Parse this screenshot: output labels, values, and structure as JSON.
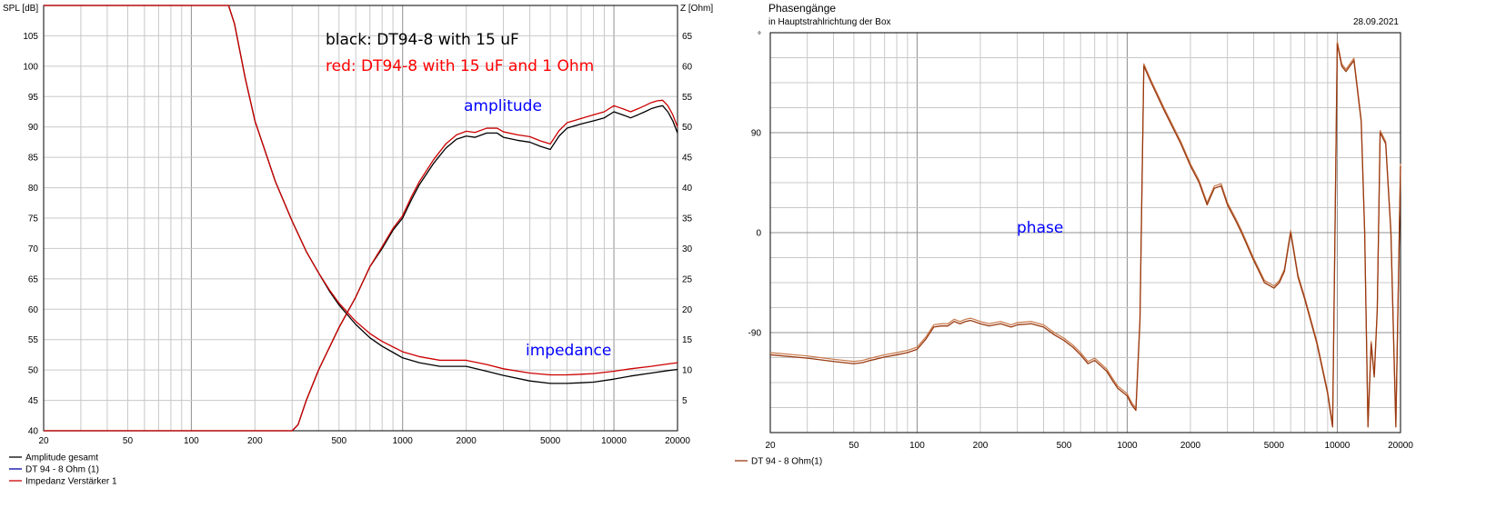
{
  "colors": {
    "black_curve": "#000000",
    "red_curve": "#cc0000",
    "phase_curve": "#9a3a10",
    "phase_curve2": "#c8784a",
    "annotation_black": "#000000",
    "annotation_red": "#ff0000",
    "annotation_blue": "#0000ff",
    "grid_minor": "#c8c8c8",
    "grid_major": "#909090"
  },
  "left": {
    "y_left_unit": "SPL [dB]",
    "y_right_unit": "Z [Ohm]",
    "annotations": {
      "black": "black: DT94-8 with 15 uF",
      "red": "red: DT94-8 with 15 uF and 1 Ohm",
      "amplitude": "amplitude",
      "impedance": "impedance"
    },
    "legend": [
      "Amplitude gesamt",
      "DT 94 - 8 Ohm (1)",
      "Impedanz Verstärker 1"
    ]
  },
  "right": {
    "title": "Phasengänge",
    "subtitle": "in Hauptstrahlrichtung der Box",
    "date": "28.09.2021",
    "y_unit": "°",
    "annotation": "phase",
    "legend": [
      "DT 94 - 8 Ohm(1)"
    ]
  },
  "chart_data": [
    {
      "type": "line",
      "x_scale": "log",
      "xlim": [
        20,
        20000
      ],
      "x_tick_labels": [
        "20",
        "50",
        "100",
        "200",
        "500",
        "1000",
        "2000",
        "5000",
        "10000",
        "20000"
      ],
      "ylim": [
        40,
        110
      ],
      "y_tick_labels": [
        "40",
        "45",
        "50",
        "55",
        "60",
        "65",
        "70",
        "75",
        "80",
        "85",
        "90",
        "95",
        "100",
        "105"
      ],
      "y2lim": [
        0,
        70
      ],
      "y2_tick_labels": [
        "5",
        "10",
        "15",
        "20",
        "25",
        "30",
        "35",
        "40",
        "45",
        "50",
        "55",
        "60",
        "65"
      ],
      "ylabel": "SPL [dB]",
      "y2label": "Z [Ohm]",
      "grid": true,
      "legend_position": "bottom-left",
      "series": [
        {
          "name": "Amplitude gesamt",
          "axis": "left",
          "x": [
            20,
            300,
            320,
            350,
            400,
            500,
            600,
            700,
            800,
            900,
            1000,
            1100,
            1200,
            1400,
            1600,
            1800,
            2000,
            2200,
            2500,
            2800,
            3000,
            3500,
            4000,
            4500,
            5000,
            5500,
            6000,
            7000,
            8000,
            9000,
            10000,
            11000,
            12000,
            13000,
            14000,
            15000,
            16000,
            17000,
            18000,
            19000,
            20000
          ],
          "y": [
            40,
            40,
            41,
            45,
            50,
            57,
            62,
            67,
            70,
            73,
            75,
            78,
            80.5,
            84,
            86.5,
            88,
            88.5,
            88.3,
            89,
            89,
            88.3,
            87.8,
            87.5,
            86.8,
            86.3,
            88.5,
            89.8,
            90.5,
            91,
            91.5,
            92.5,
            92,
            91.5,
            92,
            92.5,
            93,
            93.3,
            93.5,
            92.5,
            91,
            89
          ]
        },
        {
          "name": "DT 94 - 8 Ohm (1)",
          "axis": "left",
          "x": [
            20,
            300,
            320,
            350,
            400,
            500,
            600,
            700,
            800,
            900,
            1000,
            1100,
            1200,
            1400,
            1600,
            1800,
            2000,
            2200,
            2500,
            2800,
            3000,
            3500,
            4000,
            4500,
            5000,
            5500,
            6000,
            7000,
            8000,
            9000,
            10000,
            11000,
            12000,
            13000,
            14000,
            15000,
            16000,
            17000,
            18000,
            19000,
            20000
          ],
          "y": [
            40,
            40,
            41,
            45,
            50,
            57,
            62,
            67,
            70.3,
            73.3,
            75.4,
            78.5,
            81,
            84.6,
            87.2,
            88.7,
            89.3,
            89.1,
            89.8,
            89.8,
            89.2,
            88.7,
            88.4,
            87.7,
            87.2,
            89.4,
            90.7,
            91.4,
            92,
            92.5,
            93.5,
            93,
            92.5,
            93,
            93.5,
            94,
            94.3,
            94.4,
            93.5,
            92,
            90
          ]
        },
        {
          "name": "Impedanz Verstärker 1",
          "axis": "right",
          "x": [
            20,
            150,
            160,
            180,
            200,
            250,
            300,
            350,
            400,
            450,
            500,
            600,
            700,
            800,
            900,
            1000,
            1200,
            1500,
            2000,
            2500,
            3000,
            4000,
            5000,
            6000,
            7000,
            8000,
            10000,
            12000,
            15000,
            18000,
            20000
          ],
          "y": [
            70,
            70,
            67,
            58,
            51,
            41,
            34.5,
            29.5,
            26,
            23.2,
            21,
            18,
            16,
            14.7,
            13.8,
            13,
            12.2,
            11.6,
            11.6,
            10.9,
            10.2,
            9.5,
            9.2,
            9.2,
            9.3,
            9.4,
            9.8,
            10.2,
            10.6,
            11,
            11.2
          ]
        },
        {
          "axis": "right",
          "x": [
            20,
            150,
            160,
            180,
            200,
            250,
            300,
            350,
            400,
            450,
            500,
            600,
            700,
            800,
            900,
            1000,
            1200,
            1500,
            2000,
            2500,
            3000,
            4000,
            5000,
            6000,
            7000,
            8000,
            10000,
            12000,
            15000,
            18000,
            20000
          ],
          "y": [
            70,
            70,
            67,
            58,
            51,
            41,
            34.5,
            29.5,
            26,
            23,
            20.7,
            17.5,
            15.3,
            13.9,
            12.9,
            12,
            11.2,
            10.6,
            10.6,
            9.8,
            9.1,
            8.2,
            7.8,
            7.8,
            7.9,
            8,
            8.5,
            9,
            9.5,
            9.9,
            10.1
          ]
        }
      ]
    },
    {
      "type": "line",
      "title": "Phasengänge",
      "x_scale": "log",
      "xlim": [
        20,
        20000
      ],
      "x_tick_labels": [
        "20",
        "50",
        "100",
        "200",
        "500",
        "1000",
        "2000",
        "5000",
        "10000",
        "20000"
      ],
      "ylim": [
        -180,
        180
      ],
      "y_tick_labels": [
        "°",
        "90",
        "0",
        "-90"
      ],
      "grid": true,
      "legend_position": "bottom-left",
      "series": [
        {
          "name": "DT 94 - 8 Ohm(1)",
          "x": [
            20,
            30,
            40,
            50,
            55,
            60,
            70,
            80,
            90,
            100,
            110,
            120,
            130,
            140,
            150,
            160,
            170,
            180,
            200,
            220,
            250,
            280,
            300,
            350,
            400,
            450,
            500,
            550,
            600,
            650,
            700,
            750,
            800,
            850,
            900,
            1000,
            1050,
            1100,
            1150,
            1200,
            1300,
            1500,
            1800,
            2000,
            2200,
            2400,
            2600,
            2800,
            3000,
            3300,
            3500,
            4000,
            4500,
            5000,
            5300,
            5600,
            6000,
            6500,
            7000,
            8000,
            9000,
            9500,
            10000,
            10500,
            11000,
            12000,
            13000,
            13500,
            14000,
            14500,
            15000,
            15500,
            16000,
            17000,
            18000,
            19000,
            20000
          ],
          "y": [
            -110,
            -113,
            -116,
            -118,
            -117,
            -115,
            -112,
            -110,
            -108,
            -105,
            -96,
            -85,
            -84,
            -84,
            -80,
            -82,
            -80,
            -79,
            -82,
            -84,
            -82,
            -85,
            -83,
            -82,
            -85,
            -92,
            -97,
            -103,
            -110,
            -118,
            -115,
            -120,
            -125,
            -133,
            -140,
            -147,
            -155,
            -160,
            -80,
            150,
            135,
            110,
            80,
            60,
            45,
            25,
            40,
            42,
            25,
            10,
            0,
            -25,
            -45,
            -50,
            -45,
            -35,
            0,
            -40,
            -60,
            -100,
            -145,
            -175,
            170,
            150,
            145,
            155,
            100,
            0,
            -175,
            -100,
            -130,
            -70,
            90,
            80,
            0,
            -175,
            60
          ]
        }
      ]
    }
  ]
}
